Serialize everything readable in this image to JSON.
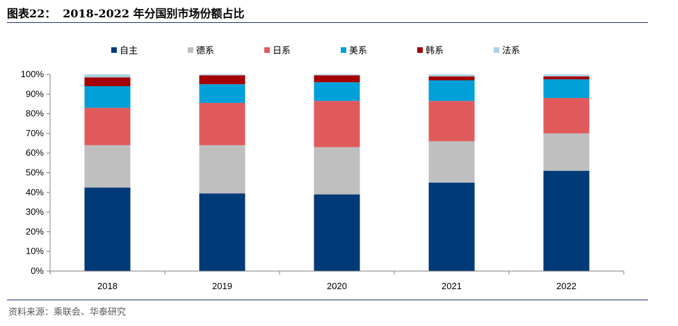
{
  "header": {
    "figure_no": "图表22：",
    "title": "2018-2022 年分国别市场份额占比"
  },
  "footer": {
    "source": "资料来源：乘联会、华泰研究"
  },
  "chart_data": {
    "type": "bar",
    "stacked": true,
    "categories": [
      "2018",
      "2019",
      "2020",
      "2021",
      "2022"
    ],
    "series": [
      {
        "name": "自主",
        "color": "#003a78",
        "values": [
          42.5,
          39.5,
          39.0,
          45.0,
          51.0
        ]
      },
      {
        "name": "德系",
        "color": "#bfbfbf",
        "values": [
          21.5,
          24.5,
          24.0,
          21.0,
          19.0
        ]
      },
      {
        "name": "日系",
        "color": "#e05a5c",
        "values": [
          19.0,
          21.5,
          23.5,
          20.5,
          18.0
        ]
      },
      {
        "name": "美系",
        "color": "#00a0d8",
        "values": [
          11.0,
          9.5,
          9.5,
          10.5,
          9.5
        ]
      },
      {
        "name": "韩系",
        "color": "#a50000",
        "values": [
          4.5,
          4.5,
          3.5,
          2.0,
          1.5
        ]
      },
      {
        "name": "法系",
        "color": "#a9d4e4",
        "values": [
          1.5,
          0.5,
          0.5,
          1.0,
          1.0
        ]
      }
    ],
    "yticks": [
      "0%",
      "10%",
      "20%",
      "30%",
      "40%",
      "50%",
      "60%",
      "70%",
      "80%",
      "90%",
      "100%"
    ],
    "ylim": [
      0,
      100
    ],
    "grid": false,
    "legend_position": "top"
  }
}
